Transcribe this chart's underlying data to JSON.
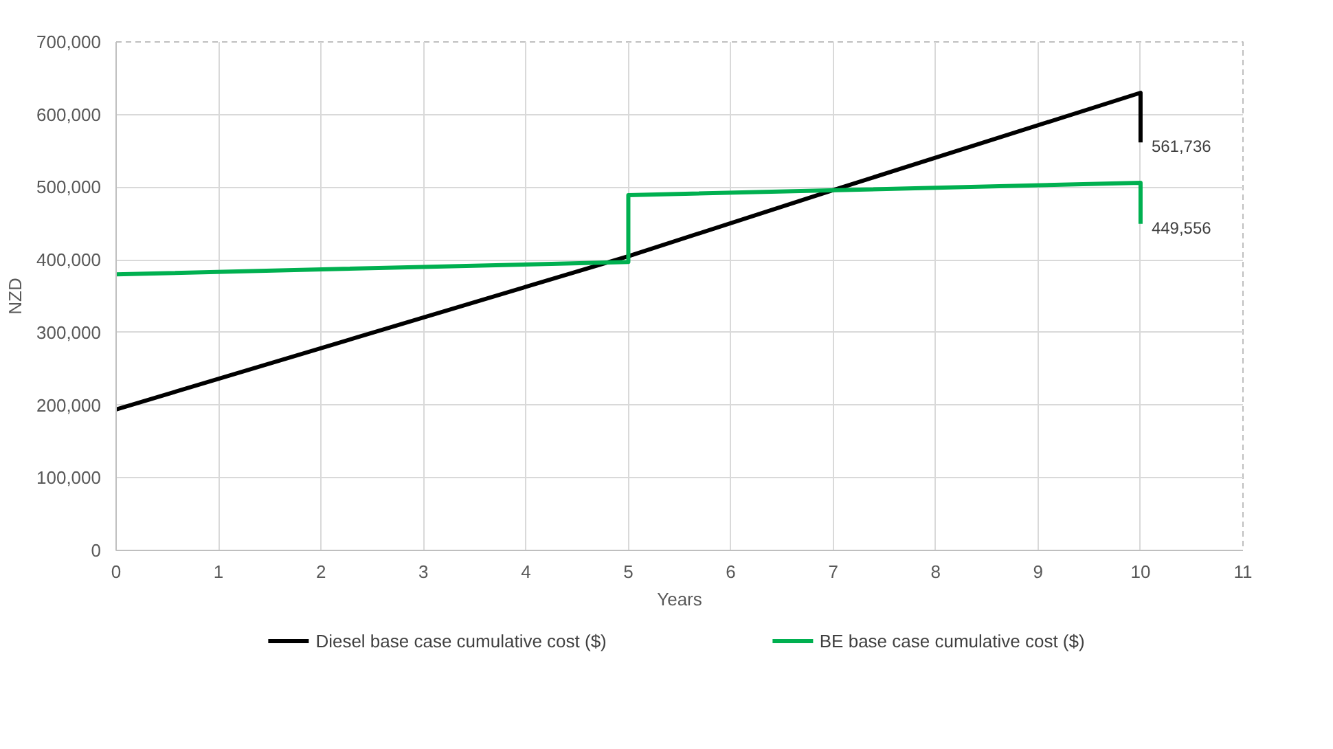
{
  "chart_data": {
    "type": "line",
    "xlabel": "Years",
    "ylabel": "NZD",
    "xlim": [
      0,
      11
    ],
    "xticks": [
      0,
      1,
      2,
      3,
      4,
      5,
      6,
      7,
      8,
      9,
      10,
      11
    ],
    "ylim": [
      0,
      700000
    ],
    "yticks": [
      0,
      {
        "value": 100000,
        "label": "100,000"
      },
      {
        "value": 200000,
        "label": "200,000"
      },
      {
        "value": 300000,
        "label": "300,000"
      },
      {
        "value": 400000,
        "label": "400,000"
      },
      {
        "value": 500000,
        "label": "500,000"
      },
      {
        "value": 600000,
        "label": "600,000"
      },
      {
        "value": 700000,
        "label": "700,000"
      }
    ],
    "series": [
      {
        "name": "Diesel base case cumulative cost ($)",
        "color": "#000000",
        "x": [
          0,
          5,
          7,
          10,
          10
        ],
        "values": [
          194000,
          405000,
          496000,
          630000,
          561736
        ]
      },
      {
        "name": "BE base case cumulative cost ($)",
        "color": "#00b050",
        "x": [
          0,
          5,
          5,
          10,
          10
        ],
        "values": [
          380000,
          397000,
          489000,
          506000,
          449556
        ]
      }
    ],
    "annotations": [
      {
        "text": "561,736",
        "x": 10,
        "y": 561736
      },
      {
        "text": "449,556",
        "x": 10,
        "y": 449556
      }
    ],
    "grid": true,
    "legend": "bottom",
    "marker": "none",
    "line_style": "solid"
  }
}
